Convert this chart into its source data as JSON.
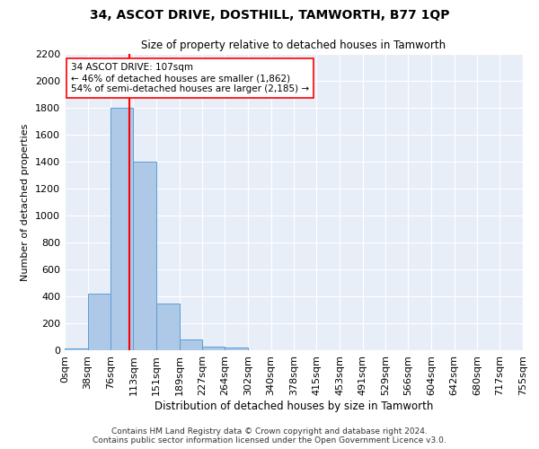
{
  "title": "34, ASCOT DRIVE, DOSTHILL, TAMWORTH, B77 1QP",
  "subtitle": "Size of property relative to detached houses in Tamworth",
  "xlabel": "Distribution of detached houses by size in Tamworth",
  "ylabel": "Number of detached properties",
  "annotation_line1": "34 ASCOT DRIVE: 107sqm",
  "annotation_line2": "← 46% of detached houses are smaller (1,862)",
  "annotation_line3": "54% of semi-detached houses are larger (2,185) →",
  "property_size_sqm": 107,
  "bar_edges": [
    0,
    38,
    76,
    113,
    151,
    189,
    227,
    264,
    302,
    340,
    378,
    415,
    453,
    491,
    529,
    566,
    604,
    642,
    680,
    717,
    755
  ],
  "bar_heights": [
    15,
    420,
    1800,
    1400,
    350,
    80,
    30,
    18,
    0,
    0,
    0,
    0,
    0,
    0,
    0,
    0,
    0,
    0,
    0,
    0
  ],
  "bar_color": "#aec8e8",
  "bar_edgecolor": "#5a9fd4",
  "vline_color": "red",
  "vline_x": 107,
  "ylim": [
    0,
    2200
  ],
  "yticks": [
    0,
    200,
    400,
    600,
    800,
    1000,
    1200,
    1400,
    1600,
    1800,
    2000,
    2200
  ],
  "background_color": "#e8eef8",
  "footer_line1": "Contains HM Land Registry data © Crown copyright and database right 2024.",
  "footer_line2": "Contains public sector information licensed under the Open Government Licence v3.0."
}
